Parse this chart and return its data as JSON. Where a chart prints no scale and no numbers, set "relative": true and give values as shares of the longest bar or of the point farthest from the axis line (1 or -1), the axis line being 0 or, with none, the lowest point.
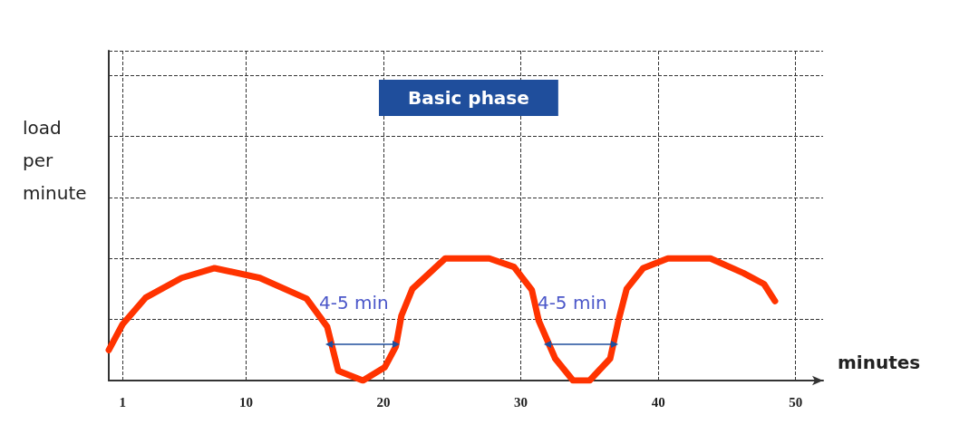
{
  "chart_data": {
    "type": "line",
    "relative": true,
    "xlabel": "minutes",
    "ylabel": "load per minute",
    "color": "#ff3300",
    "x": [
      0,
      1.0,
      2.7,
      5.3,
      7.7,
      11.0,
      14.4,
      15.9,
      16.7,
      18.5,
      20.1,
      20.9,
      21.3,
      22.1,
      24.5,
      27.7,
      29.5,
      30.8,
      31.3,
      32.5,
      33.8,
      35.0,
      36.5,
      37.1,
      37.7,
      38.9,
      40.7,
      43.8,
      46.2,
      47.7,
      48.5
    ],
    "values": [
      0.25,
      0.46,
      0.68,
      0.84,
      0.92,
      0.84,
      0.67,
      0.44,
      0.08,
      0,
      0.11,
      0.28,
      0.53,
      0.75,
      1,
      1,
      0.93,
      0.74,
      0.49,
      0.18,
      0,
      0,
      0.18,
      0.49,
      0.75,
      0.92,
      1,
      1,
      0.88,
      0.79,
      0.65
    ],
    "xlim": [
      0,
      52
    ],
    "xticks": [
      1,
      10,
      20,
      30,
      40,
      50
    ],
    "grid": true,
    "line_style": "solid",
    "marker": "none",
    "annotations": [
      "Basic phase",
      "4-5 min",
      "4-5 min"
    ]
  }
}
